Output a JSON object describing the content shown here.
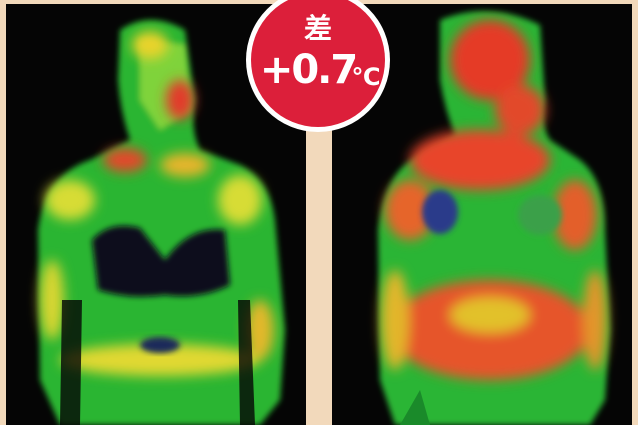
{
  "badge": {
    "label": "差",
    "value": "+0.7",
    "unit": "℃"
  }
}
